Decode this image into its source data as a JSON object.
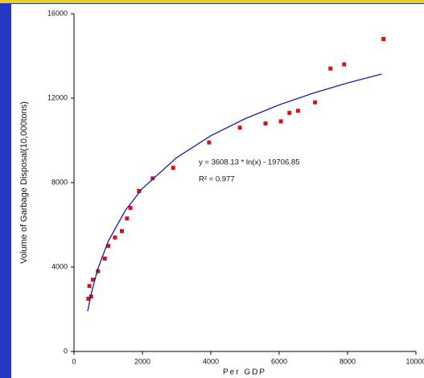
{
  "chart_data": {
    "type": "scatter",
    "x_label": "Per GDP",
    "y_label": "Volume of Garbage Disposal(10,000tons)",
    "annotations": [
      "y = 3608.13 * ln(x) - 19706.85",
      "R² = 0.977"
    ],
    "xlim": [
      0,
      10000
    ],
    "xticks": [
      0,
      2000,
      4000,
      6000,
      8000,
      10000
    ],
    "ylim": [
      0,
      16000
    ],
    "yticks": [
      0,
      4000,
      8000,
      12000,
      16000
    ],
    "series": [
      {
        "style": "marker",
        "color": "#e01010",
        "x": [
          420,
          450,
          500,
          550,
          700,
          900,
          1000,
          1200,
          1400,
          1550,
          1650,
          1900,
          2300,
          2900,
          3950,
          4850,
          5600,
          6050,
          6300,
          6550,
          7050,
          7500,
          7900,
          9050
        ],
        "values": [
          2500,
          3100,
          2600,
          3400,
          3800,
          4400,
          5000,
          5400,
          5700,
          6300,
          6800,
          7600,
          8200,
          8700,
          9900,
          10600,
          10800,
          10900,
          11300,
          11400,
          11800,
          13400,
          13600,
          14800
        ]
      },
      {
        "style": "line",
        "color": "#1a1ab0",
        "x": [
          400,
          500,
          700,
          1000,
          1500,
          2000,
          3000,
          4000,
          5000,
          6000,
          7000,
          8000,
          9000
        ],
        "values": [
          1911,
          2717,
          3930,
          5217,
          6680,
          7718,
          9180,
          10218,
          11023,
          11682,
          12238,
          12720,
          13145
        ]
      }
    ]
  }
}
